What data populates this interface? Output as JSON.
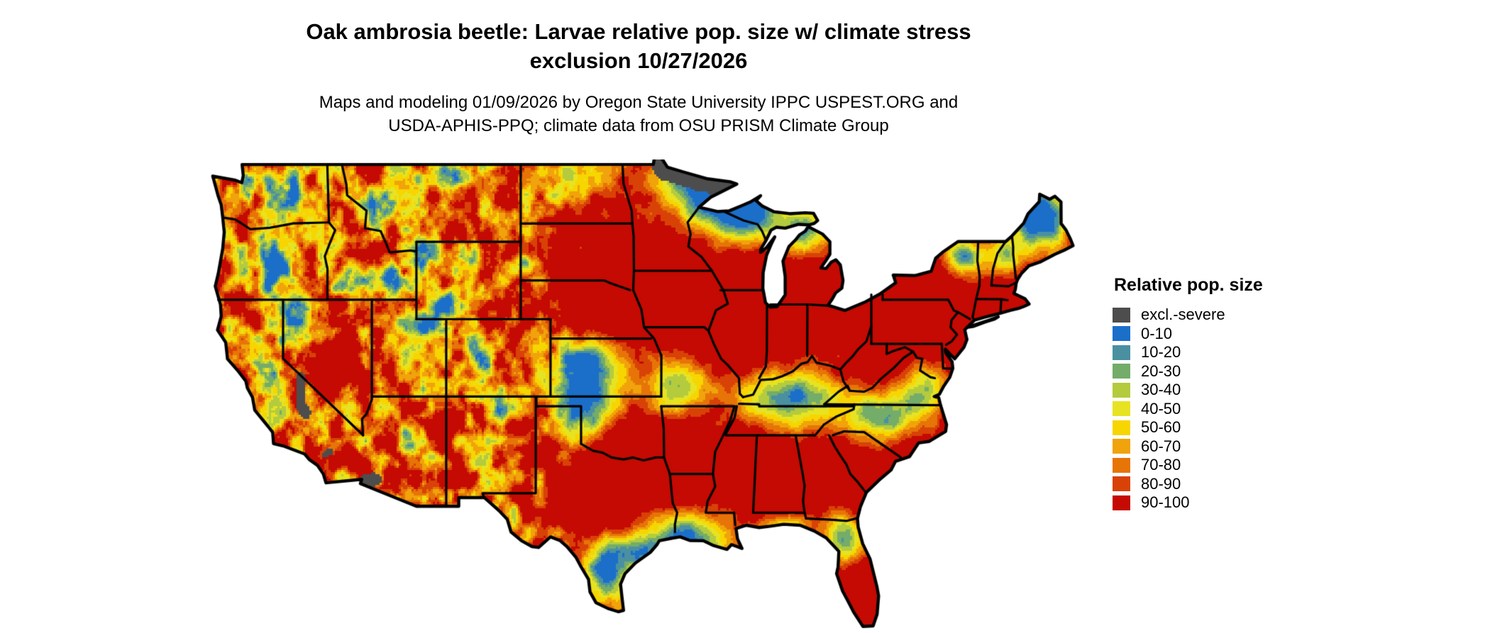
{
  "header": {
    "title_line1": "Oak ambrosia beetle: Larvae relative pop. size w/ climate stress",
    "title_line2": "exclusion 10/27/2026",
    "subtitle_line1": "Maps and modeling 01/09/2026 by Oregon State University IPPC USPEST.ORG and",
    "subtitle_line2": "USDA-APHIS-PPQ; climate data from OSU PRISM Climate Group"
  },
  "legend": {
    "title": "Relative pop. size",
    "items": [
      {
        "label": "excl.-severe",
        "color": "#4d4d4d"
      },
      {
        "label": "0-10",
        "color": "#1b6fc9"
      },
      {
        "label": "10-20",
        "color": "#4a90a1"
      },
      {
        "label": "20-30",
        "color": "#74ac69"
      },
      {
        "label": "30-40",
        "color": "#b4cb3e"
      },
      {
        "label": "40-50",
        "color": "#e7e322"
      },
      {
        "label": "50-60",
        "color": "#f7d500"
      },
      {
        "label": "60-70",
        "color": "#f0a30a"
      },
      {
        "label": "70-80",
        "color": "#e77407"
      },
      {
        "label": "80-90",
        "color": "#d84206"
      },
      {
        "label": "90-100",
        "color": "#c40a02"
      }
    ]
  },
  "map": {
    "region_shape": "contiguous United States with state borders",
    "border_color": "#000000",
    "water_color": "#ffffff"
  }
}
